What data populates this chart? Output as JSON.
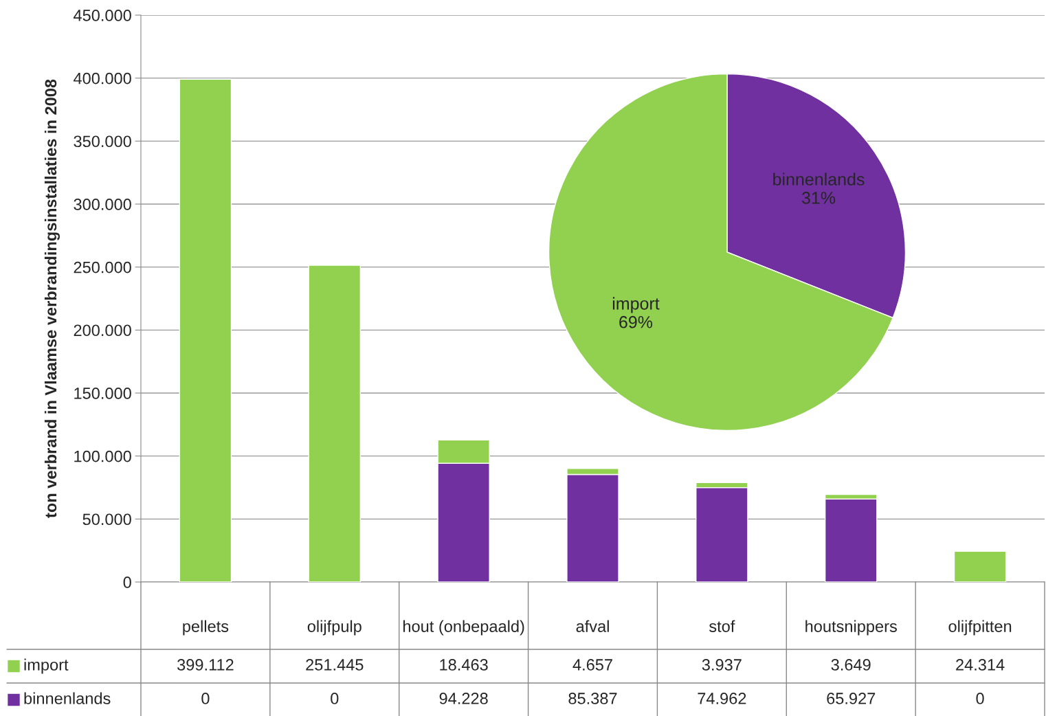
{
  "chart_data": [
    {
      "type": "bar",
      "stacked": true,
      "ylabel": "ton verbrand in Vlaamse verbrandingsinstallaties in 2008",
      "categories": [
        "pellets",
        "olijfpulp",
        "hout (onbepaald)",
        "afval",
        "stof",
        "houtsnippers",
        "olijfpitten"
      ],
      "series": [
        {
          "name": "binnenlands",
          "color": "#7030a0",
          "values": [
            0,
            0,
            94228,
            85387,
            74962,
            65927,
            0
          ],
          "value_labels": [
            "0",
            "0",
            "94.228",
            "85.387",
            "74.962",
            "65.927",
            "0"
          ]
        },
        {
          "name": "import",
          "color": "#92d050",
          "values": [
            399112,
            251445,
            18463,
            4657,
            3937,
            3649,
            24314
          ],
          "value_labels": [
            "399.112",
            "251.445",
            "18.463",
            "4.657",
            "3.937",
            "3.649",
            "24.314"
          ]
        }
      ],
      "ylim": [
        0,
        450000
      ],
      "yticks": [
        {
          "value": 0,
          "label": "0"
        },
        {
          "value": 50000,
          "label": "50.000"
        },
        {
          "value": 100000,
          "label": "100.000"
        },
        {
          "value": 150000,
          "label": "150.000"
        },
        {
          "value": 200000,
          "label": "200.000"
        },
        {
          "value": 250000,
          "label": "250.000"
        },
        {
          "value": 300000,
          "label": "300.000"
        },
        {
          "value": 350000,
          "label": "350.000"
        },
        {
          "value": 400000,
          "label": "400.000"
        },
        {
          "value": 450000,
          "label": "450.000"
        }
      ],
      "grid": "y",
      "legend": "bottom left"
    },
    {
      "type": "pie",
      "categories": [
        "binnenlands",
        "import"
      ],
      "values": [
        31,
        69
      ],
      "colors": [
        "#7030a0",
        "#92d050"
      ],
      "value_labels": [
        "31%",
        "69%"
      ]
    }
  ]
}
